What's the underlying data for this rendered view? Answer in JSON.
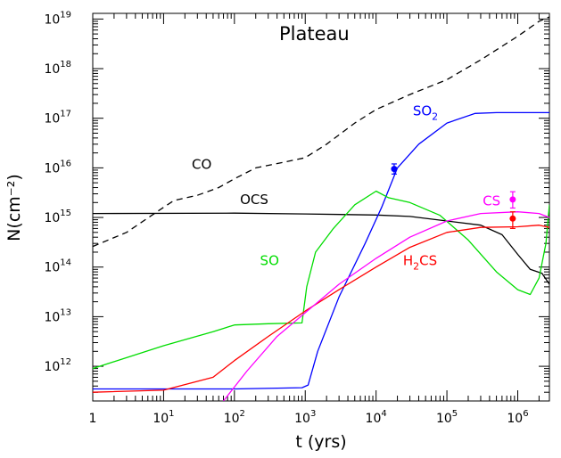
{
  "chart_data": {
    "type": "line",
    "title": "Plateau",
    "xlabel": "t (yrs)",
    "ylabel": "N(cm⁻²)",
    "x_scale": "log",
    "y_scale": "log",
    "xlim": [
      1,
      2800000
    ],
    "ylim": [
      200000000000.0,
      1.3e+19
    ],
    "x_ticks": [
      {
        "value": 1,
        "label": "1",
        "sup": ""
      },
      {
        "value": 10,
        "label": "10",
        "sup": "1"
      },
      {
        "value": 100,
        "label": "10",
        "sup": "2"
      },
      {
        "value": 1000,
        "label": "10",
        "sup": "3"
      },
      {
        "value": 10000,
        "label": "10",
        "sup": "4"
      },
      {
        "value": 100000,
        "label": "10",
        "sup": "5"
      },
      {
        "value": 1000000,
        "label": "10",
        "sup": "6"
      }
    ],
    "y_ticks": [
      {
        "value": 1000000000000.0,
        "label": "10",
        "sup": "12"
      },
      {
        "value": 10000000000000.0,
        "label": "10",
        "sup": "13"
      },
      {
        "value": 100000000000000.0,
        "label": "10",
        "sup": "14"
      },
      {
        "value": 1000000000000000.0,
        "label": "10",
        "sup": "15"
      },
      {
        "value": 1e+16,
        "label": "10",
        "sup": "16"
      },
      {
        "value": 1e+17,
        "label": "10",
        "sup": "17"
      },
      {
        "value": 1e+18,
        "label": "10",
        "sup": "18"
      },
      {
        "value": 1e+19,
        "label": "10",
        "sup": "19"
      }
    ],
    "series": [
      {
        "name": "CO",
        "color": "#000000",
        "dash": "dashed",
        "label": {
          "text": "CO",
          "sub": "",
          "x": 25,
          "y": 9500000000000000.0
        },
        "points": [
          [
            1,
            260000000000000.0
          ],
          [
            3,
            500000000000000.0
          ],
          [
            10,
            1600000000000000.0
          ],
          [
            14,
            2200000000000000.0
          ],
          [
            30,
            2800000000000000.0
          ],
          [
            60,
            4000000000000000.0
          ],
          [
            100,
            6000000000000000.0
          ],
          [
            200,
            1e+16
          ],
          [
            500,
            1.3e+16
          ],
          [
            1000,
            1.6e+16
          ],
          [
            2000,
            3e+16
          ],
          [
            5000,
            8e+16
          ],
          [
            10000,
            1.5e+17
          ],
          [
            30000,
            3e+17
          ],
          [
            100000,
            6e+17
          ],
          [
            300000,
            1.5e+18
          ],
          [
            1000000,
            4.5e+18
          ],
          [
            2000000,
            9e+18
          ],
          [
            2800000,
            1.1e+19
          ]
        ]
      },
      {
        "name": "OCS",
        "color": "#000000",
        "dash": "solid",
        "label": {
          "text": "OCS",
          "sub": "",
          "x": 120,
          "y": 1850000000000000.0
        },
        "points": [
          [
            1,
            1200000000000000.0
          ],
          [
            100,
            1220000000000000.0
          ],
          [
            1000,
            1180000000000000.0
          ],
          [
            10000,
            1120000000000000.0
          ],
          [
            30000,
            1050000000000000.0
          ],
          [
            100000,
            850000000000000.0
          ],
          [
            300000,
            700000000000000.0
          ],
          [
            600000,
            450000000000000.0
          ],
          [
            1000000,
            180000000000000.0
          ],
          [
            1500000,
            90000000000000.0
          ],
          [
            2200000,
            75000000000000.0
          ],
          [
            2800000,
            45000000000000.0
          ]
        ]
      },
      {
        "name": "SO2",
        "color": "#0000ff",
        "dash": "solid",
        "label": {
          "text": "SO",
          "sub": "2",
          "x": 33000,
          "y": 1.15e+17
        },
        "points": [
          [
            1,
            350000000000.0
          ],
          [
            100,
            350000000000.0
          ],
          [
            900,
            370000000000.0
          ],
          [
            1100,
            420000000000.0
          ],
          [
            1500,
            2000000000000.0
          ],
          [
            3000,
            25000000000000.0
          ],
          [
            7000,
            300000000000000.0
          ],
          [
            12000,
            1600000000000000.0
          ],
          [
            20000,
            1e+16
          ],
          [
            40000,
            3e+16
          ],
          [
            100000,
            8e+16
          ],
          [
            250000,
            1.25e+17
          ],
          [
            500000,
            1.3e+17
          ],
          [
            1000000,
            1.3e+17
          ],
          [
            2800000,
            1.3e+17
          ]
        ]
      },
      {
        "name": "SO",
        "color": "#00dd00",
        "dash": "solid",
        "label": {
          "text": "SO",
          "sub": "",
          "x": 230,
          "y": 110000000000000.0
        },
        "points": [
          [
            1,
            900000000000.0
          ],
          [
            10,
            2600000000000.0
          ],
          [
            50,
            5000000000000.0
          ],
          [
            100,
            6800000000000.0
          ],
          [
            300,
            7200000000000.0
          ],
          [
            900,
            7500000000000.0
          ],
          [
            1050,
            40000000000000.0
          ],
          [
            1400,
            200000000000000.0
          ],
          [
            2500,
            600000000000000.0
          ],
          [
            5000,
            1800000000000000.0
          ],
          [
            10000,
            3400000000000000.0
          ],
          [
            15000,
            2500000000000000.0
          ],
          [
            30000,
            2000000000000000.0
          ],
          [
            80000,
            1100000000000000.0
          ],
          [
            200000,
            350000000000000.0
          ],
          [
            500000,
            80000000000000.0
          ],
          [
            1000000,
            35000000000000.0
          ],
          [
            1500000,
            28000000000000.0
          ],
          [
            2000000,
            60000000000000.0
          ],
          [
            2500000,
            300000000000000.0
          ],
          [
            2800000,
            1800000000000000.0
          ]
        ]
      },
      {
        "name": "H2CS",
        "color": "#ff0000",
        "dash": "solid",
        "label": {
          "text": "H",
          "sub": "2",
          "after": "CS",
          "x": 24000,
          "y": 110000000000000.0
        },
        "points": [
          [
            1,
            300000000000.0
          ],
          [
            10,
            330000000000.0
          ],
          [
            50,
            600000000000.0
          ],
          [
            100,
            1300000000000.0
          ],
          [
            300,
            4000000000000.0
          ],
          [
            1000,
            13000000000000.0
          ],
          [
            3000,
            35000000000000.0
          ],
          [
            10000,
            100000000000000.0
          ],
          [
            30000,
            250000000000000.0
          ],
          [
            100000,
            500000000000000.0
          ],
          [
            300000,
            630000000000000.0
          ],
          [
            1000000,
            650000000000000.0
          ],
          [
            2000000,
            700000000000000.0
          ],
          [
            2800000,
            630000000000000.0
          ]
        ]
      },
      {
        "name": "CS",
        "color": "#ff00ff",
        "dash": "solid",
        "label": {
          "text": "CS",
          "sub": "",
          "x": 320000,
          "y": 1750000000000000.0
        },
        "points": [
          [
            70,
            200000000000.0
          ],
          [
            150,
            800000000000.0
          ],
          [
            400,
            4000000000000.0
          ],
          [
            1000,
            12000000000000.0
          ],
          [
            3000,
            45000000000000.0
          ],
          [
            10000,
            150000000000000.0
          ],
          [
            30000,
            400000000000000.0
          ],
          [
            100000,
            850000000000000.0
          ],
          [
            300000,
            1200000000000000.0
          ],
          [
            1000000,
            1300000000000000.0
          ],
          [
            2000000,
            1200000000000000.0
          ],
          [
            2800000,
            1000000000000000.0
          ]
        ]
      }
    ],
    "observations": [
      {
        "species": "SO2",
        "color": "#0000ff",
        "x": 18000,
        "y": 9500000000000000.0,
        "err_lo": 7500000000000000.0,
        "err_hi": 1.2e+16
      },
      {
        "species": "CS",
        "color": "#ff00ff",
        "x": 850000,
        "y": 2300000000000000.0,
        "err_lo": 1550000000000000.0,
        "err_hi": 3300000000000000.0
      },
      {
        "species": "H2CS",
        "color": "#ff0000",
        "x": 850000,
        "y": 950000000000000.0,
        "err_lo": 600000000000000.0,
        "err_hi": 1300000000000000.0
      }
    ]
  }
}
